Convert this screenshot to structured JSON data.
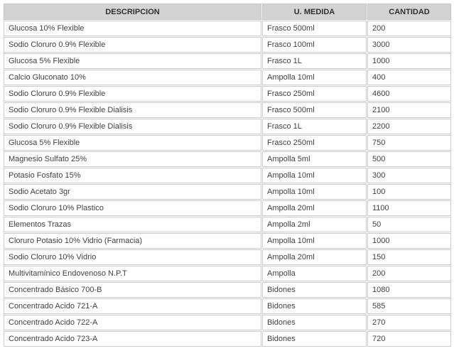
{
  "table": {
    "columns": [
      {
        "key": "descripcion",
        "label": "DESCRIPCION"
      },
      {
        "key": "u_medida",
        "label": "U. MEDIDA"
      },
      {
        "key": "cantidad",
        "label": "CANTIDAD"
      }
    ],
    "rows": [
      {
        "descripcion": "Glucosa 10% Flexible",
        "u_medida": "Frasco 500ml",
        "cantidad": "200"
      },
      {
        "descripcion": "Sodio Cloruro 0.9% Flexible",
        "u_medida": "Frasco 100ml",
        "cantidad": "3000"
      },
      {
        "descripcion": "Glucosa 5% Flexible",
        "u_medida": "Frasco 1L",
        "cantidad": "1000"
      },
      {
        "descripcion": "Calcio Gluconato 10%",
        "u_medida": "Ampolla 10ml",
        "cantidad": "400"
      },
      {
        "descripcion": "Sodio Cloruro 0.9% Flexible",
        "u_medida": "Frasco 250ml",
        "cantidad": "4600"
      },
      {
        "descripcion": "Sodio Cloruro 0.9% Flexible Dialisis",
        "u_medida": "Frasco 500ml",
        "cantidad": "2100"
      },
      {
        "descripcion": "Sodio Cloruro 0.9% Flexible Dialisis",
        "u_medida": "Frasco 1L",
        "cantidad": "2200"
      },
      {
        "descripcion": "Glucosa 5% Flexible",
        "u_medida": "Frasco 250ml",
        "cantidad": "750"
      },
      {
        "descripcion": "Magnesio Sulfato 25%",
        "u_medida": "Ampolla 5ml",
        "cantidad": "500"
      },
      {
        "descripcion": "Potasio Fosfato 15%",
        "u_medida": "Ampolla 10ml",
        "cantidad": "300"
      },
      {
        "descripcion": "Sodio Acetato 3gr",
        "u_medida": "Ampolla 10ml",
        "cantidad": "100"
      },
      {
        "descripcion": "Sodio Cloruro 10% Plastico",
        "u_medida": "Ampolla 20ml",
        "cantidad": "1100"
      },
      {
        "descripcion": "Elementos Trazas",
        "u_medida": "Ampolla 2ml",
        "cantidad": "50"
      },
      {
        "descripcion": "Cloruro Potasio 10% Vidrio (Farmacia)",
        "u_medida": "Ampolla 10ml",
        "cantidad": "1000"
      },
      {
        "descripcion": "Sodio Cloruro 10% Vidrio",
        "u_medida": "Ampolla 20ml",
        "cantidad": "150"
      },
      {
        "descripcion": "Multivitamínico Endovenoso N.P.T",
        "u_medida": "Ampolla",
        "cantidad": "200"
      },
      {
        "descripcion": "Concentrado Básico 700-B",
        "u_medida": "Bidones",
        "cantidad": "1080"
      },
      {
        "descripcion": "Concentrado Acido 721-A",
        "u_medida": "Bidones",
        "cantidad": "585"
      },
      {
        "descripcion": "Concentrado Acido 722-A",
        "u_medida": "Bidones",
        "cantidad": "270"
      },
      {
        "descripcion": "Concentrado Acido 723-A",
        "u_medida": "Bidones",
        "cantidad": "720"
      }
    ]
  },
  "colors": {
    "header_bg": "#d3d3d3",
    "cell_border": "#cbcbcb",
    "header_border": "#c4c4c4",
    "text": "#404040",
    "header_text": "#2f2f2f"
  }
}
